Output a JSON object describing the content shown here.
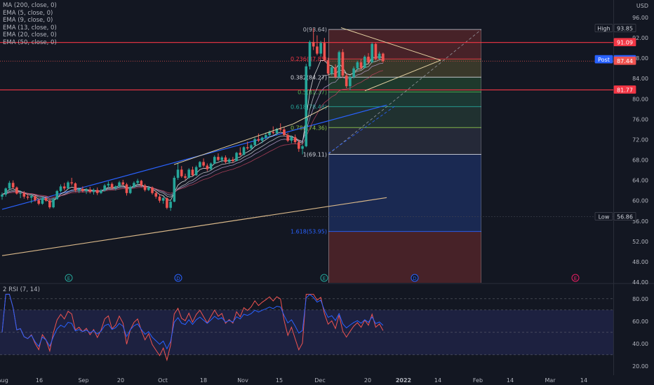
{
  "indicators": [
    "MA (200, close, 0)",
    "EMA (5, close, 0)",
    "EMA (9, close, 0)",
    "EMA (13, close, 0)",
    "EMA (20, close, 0)",
    "EMA (50, close, 0)"
  ],
  "rsi_title": "2 RSI (7, 14)",
  "currency": "USD",
  "colors": {
    "background": "#131722",
    "up": "#26a69a",
    "down": "#ef5350",
    "hline": "#f23645",
    "fib_top": "#7a2e34",
    "fib_blue": "#1d3a7a"
  },
  "price_badges": [
    {
      "label": "High",
      "value": 93.85,
      "text": "93.85",
      "bg": "#131722",
      "fg": "#d1d4dc",
      "border": "#434651"
    },
    {
      "label": "",
      "value": 91.09,
      "text": "91.09",
      "bg": "#f23645",
      "fg": "#ffffff",
      "border": "#f23645"
    },
    {
      "label": "Post",
      "value": 87.73,
      "text": "87.73",
      "bg": "#2962ff",
      "fg": "#ffffff",
      "border": "#2962ff"
    },
    {
      "label": "",
      "value": 87.44,
      "text": "87.44",
      "bg": "#ef5350",
      "fg": "#ffffff",
      "border": "#ef5350"
    },
    {
      "label": "",
      "value": 81.77,
      "text": "81.77",
      "bg": "#f23645",
      "fg": "#ffffff",
      "border": "#f23645"
    },
    {
      "label": "Low",
      "value": 56.86,
      "text": "56.86",
      "bg": "#131722",
      "fg": "#d1d4dc",
      "border": "#434651"
    }
  ],
  "fib_levels": [
    {
      "label": "0(93.64)",
      "value": 93.64,
      "color": "#b2b5be"
    },
    {
      "label": "0.236(87.85)",
      "value": 87.85,
      "color": "#f23645"
    },
    {
      "label": "0.382(84.27)",
      "value": 84.27,
      "color": "#d1d4dc"
    },
    {
      "label": "0.5(81.37)",
      "value": 81.37,
      "color": "#4caf50"
    },
    {
      "label": "0.618(78.48)",
      "value": 78.48,
      "color": "#26a69a"
    },
    {
      "label": "0.786(74.36)",
      "value": 74.36,
      "color": "#8bc34a"
    },
    {
      "label": "1(69.11)",
      "value": 69.11,
      "color": "#d1d4dc"
    },
    {
      "label": "1.618(53.95)",
      "value": 53.95,
      "color": "#2962ff"
    }
  ],
  "events": [
    {
      "letter": "E",
      "x": "Sep 9",
      "color": "#26a69a"
    },
    {
      "letter": "D",
      "x": "Oct 7",
      "color": "#2962ff"
    },
    {
      "letter": "E",
      "x": "Dec 2",
      "color": "#26a69a"
    },
    {
      "letter": "D",
      "x": "Jan 7",
      "color": "#2962ff"
    },
    {
      "letter": "E",
      "x": "Feb 24",
      "color": "#e91e63"
    }
  ],
  "chart_data": [
    {
      "type": "candlestick",
      "title": "",
      "y_ticks": [
        96.0,
        92.0,
        88.0,
        84.0,
        80.0,
        76.0,
        72.0,
        68.0,
        64.0,
        60.0,
        56.0,
        52.0,
        48.0,
        44.0
      ],
      "ylim": [
        44.0,
        99.0
      ],
      "x_ticks": [
        "Aug",
        "16",
        "Sep",
        "20",
        "Oct",
        "18",
        "Nov",
        "15",
        "Dec",
        "20",
        "2022",
        "14",
        "Feb",
        "14",
        "Mar",
        "14"
      ],
      "candles": [
        [
          60.8,
          61.6,
          60.2,
          61.2
        ],
        [
          61.2,
          62.6,
          60.8,
          62.4
        ],
        [
          62.4,
          63.9,
          62.0,
          63.5
        ],
        [
          63.5,
          64.0,
          62.3,
          62.6
        ],
        [
          62.6,
          62.8,
          61.2,
          61.4
        ],
        [
          61.4,
          62.0,
          60.5,
          61.5
        ],
        [
          61.5,
          61.9,
          60.4,
          60.8
        ],
        [
          60.8,
          61.4,
          60.2,
          60.6
        ],
        [
          60.6,
          61.3,
          59.5,
          60.9
        ],
        [
          60.9,
          61.1,
          59.8,
          60.1
        ],
        [
          60.1,
          60.4,
          59.1,
          59.4
        ],
        [
          59.4,
          60.8,
          59.2,
          60.5
        ],
        [
          60.5,
          60.9,
          59.8,
          60.0
        ],
        [
          60.0,
          60.3,
          58.4,
          58.7
        ],
        [
          58.7,
          60.6,
          58.5,
          60.3
        ],
        [
          60.3,
          62.1,
          60.2,
          61.9
        ],
        [
          61.9,
          63.2,
          61.6,
          62.8
        ],
        [
          62.8,
          63.5,
          62.0,
          62.4
        ],
        [
          62.4,
          63.9,
          62.3,
          63.6
        ],
        [
          63.6,
          64.5,
          63.0,
          63.4
        ],
        [
          63.4,
          63.6,
          61.7,
          62.0
        ],
        [
          62.0,
          62.6,
          61.5,
          62.3
        ],
        [
          62.3,
          62.8,
          61.6,
          61.9
        ],
        [
          61.9,
          62.5,
          61.3,
          62.2
        ],
        [
          62.2,
          62.7,
          61.4,
          61.7
        ],
        [
          61.7,
          62.4,
          61.2,
          62.1
        ],
        [
          62.1,
          62.6,
          61.1,
          61.5
        ],
        [
          61.5,
          62.3,
          61.3,
          62.0
        ],
        [
          62.0,
          63.3,
          61.8,
          63.0
        ],
        [
          63.0,
          63.8,
          62.6,
          63.3
        ],
        [
          63.3,
          63.6,
          62.2,
          62.5
        ],
        [
          62.5,
          63.0,
          62.0,
          62.8
        ],
        [
          62.8,
          63.9,
          62.6,
          63.6
        ],
        [
          63.6,
          64.1,
          62.9,
          63.2
        ],
        [
          63.2,
          63.5,
          61.0,
          61.5
        ],
        [
          61.5,
          63.0,
          61.3,
          62.7
        ],
        [
          62.7,
          63.8,
          62.5,
          63.5
        ],
        [
          63.5,
          64.3,
          63.1,
          63.9
        ],
        [
          63.9,
          64.1,
          62.7,
          63.0
        ],
        [
          63.0,
          63.3,
          61.8,
          62.1
        ],
        [
          62.1,
          62.9,
          61.9,
          62.6
        ],
        [
          62.6,
          62.8,
          61.2,
          61.5
        ],
        [
          61.5,
          61.9,
          60.4,
          60.8
        ],
        [
          60.8,
          61.2,
          59.6,
          60.0
        ],
        [
          60.0,
          60.8,
          59.4,
          60.5
        ],
        [
          60.5,
          60.7,
          58.3,
          58.6
        ],
        [
          58.6,
          60.1,
          58.0,
          59.8
        ],
        [
          59.8,
          64.9,
          59.7,
          64.5
        ],
        [
          64.5,
          67.3,
          64.1,
          66.1
        ],
        [
          66.1,
          66.8,
          64.5,
          64.8
        ],
        [
          64.8,
          65.3,
          64.1,
          64.5
        ],
        [
          64.5,
          66.4,
          64.3,
          66.1
        ],
        [
          66.1,
          66.7,
          64.8,
          65.0
        ],
        [
          65.0,
          66.9,
          64.9,
          66.6
        ],
        [
          66.6,
          67.8,
          66.5,
          67.6
        ],
        [
          67.6,
          68.3,
          66.6,
          66.9
        ],
        [
          66.9,
          67.3,
          65.8,
          66.2
        ],
        [
          66.2,
          67.5,
          66.0,
          67.3
        ],
        [
          67.3,
          68.9,
          67.2,
          68.6
        ],
        [
          68.6,
          69.3,
          67.8,
          68.0
        ],
        [
          68.0,
          68.8,
          67.5,
          68.5
        ],
        [
          68.5,
          68.9,
          67.3,
          67.6
        ],
        [
          67.6,
          68.4,
          67.2,
          68.1
        ],
        [
          68.1,
          68.6,
          67.4,
          67.8
        ],
        [
          67.8,
          69.6,
          67.7,
          69.4
        ],
        [
          69.4,
          70.5,
          68.8,
          69.0
        ],
        [
          69.0,
          70.7,
          68.9,
          70.5
        ],
        [
          70.5,
          71.6,
          70.0,
          70.3
        ],
        [
          70.3,
          71.2,
          69.9,
          70.9
        ],
        [
          70.9,
          72.4,
          70.8,
          72.1
        ],
        [
          72.1,
          73.2,
          71.5,
          71.8
        ],
        [
          71.8,
          72.6,
          71.3,
          72.4
        ],
        [
          72.4,
          73.4,
          72.0,
          72.9
        ],
        [
          72.9,
          73.8,
          72.4,
          73.5
        ],
        [
          73.5,
          74.6,
          73.0,
          73.3
        ],
        [
          73.3,
          74.3,
          72.8,
          74.1
        ],
        [
          74.1,
          75.2,
          73.7,
          74.0
        ],
        [
          74.0,
          74.5,
          72.6,
          72.9
        ],
        [
          72.9,
          73.3,
          71.5,
          71.8
        ],
        [
          71.8,
          72.8,
          71.3,
          72.5
        ],
        [
          72.5,
          73.0,
          71.2,
          71.5
        ],
        [
          71.5,
          72.0,
          69.6,
          70.2
        ],
        [
          70.2,
          71.0,
          69.1,
          70.7
        ],
        [
          70.7,
          86.9,
          70.5,
          86.4
        ],
        [
          86.4,
          91.5,
          85.8,
          91.2
        ],
        [
          91.2,
          93.9,
          89.6,
          90.3
        ],
        [
          90.3,
          92.5,
          88.6,
          88.9
        ],
        [
          88.9,
          91.4,
          88.3,
          91.0
        ],
        [
          91.0,
          92.0,
          87.3,
          87.6
        ],
        [
          87.6,
          88.1,
          84.7,
          85.0
        ],
        [
          85.0,
          86.6,
          84.6,
          86.2
        ],
        [
          86.2,
          86.8,
          84.0,
          84.3
        ],
        [
          84.3,
          89.5,
          84.1,
          89.2
        ],
        [
          89.2,
          89.8,
          84.2,
          84.6
        ],
        [
          84.6,
          85.0,
          82.1,
          82.5
        ],
        [
          82.5,
          84.6,
          81.7,
          84.3
        ],
        [
          84.3,
          86.4,
          84.0,
          86.0
        ],
        [
          86.0,
          87.5,
          85.6,
          87.2
        ],
        [
          87.2,
          87.8,
          85.8,
          86.1
        ],
        [
          86.1,
          88.6,
          86.0,
          88.3
        ],
        [
          88.3,
          89.0,
          86.9,
          87.2
        ],
        [
          87.2,
          91.1,
          87.0,
          90.8
        ],
        [
          90.8,
          91.0,
          87.6,
          87.9
        ],
        [
          87.9,
          89.3,
          87.7,
          88.9
        ],
        [
          88.9,
          89.1,
          87.1,
          87.4
        ]
      ],
      "series": [
        {
          "name": "MA (200, close, 0)",
          "color": "#d9b88a",
          "x0": 0,
          "x1": 105,
          "y0": 49.2,
          "y1": 60.6
        },
        {
          "name": "EMA (50, close, 0)",
          "color": "#2962ff",
          "x0": 0,
          "x1": 105,
          "y0": 58.3,
          "y1": 78.8
        }
      ]
    },
    {
      "type": "line",
      "title": "2 RSI (7, 14)",
      "y_ticks": [
        80.0,
        60.0,
        40.0,
        20.0
      ],
      "ylim": [
        15.0,
        85.0
      ],
      "bands": [
        30,
        70
      ],
      "series": [
        {
          "name": "RSI (7)",
          "color": "#ef5350"
        },
        {
          "name": "RSI (14)",
          "color": "#2962ff"
        }
      ]
    }
  ]
}
